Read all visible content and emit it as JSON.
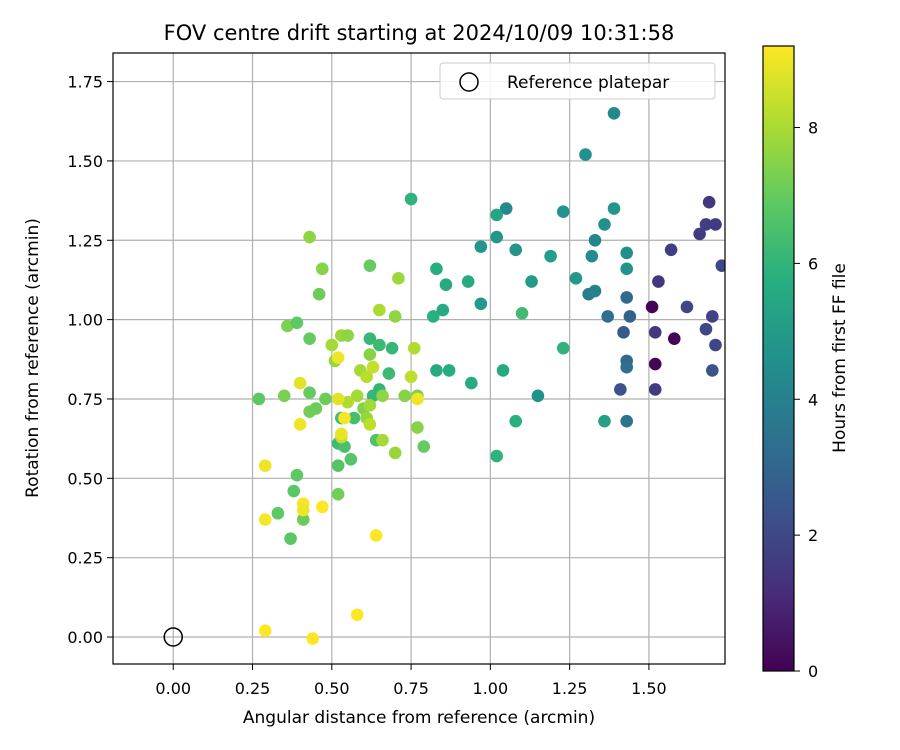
{
  "chart_data": {
    "type": "scatter",
    "title": "FOV centre drift starting at 2024/10/09 10:31:58",
    "xlabel": "Angular distance from reference (arcmin)",
    "ylabel": "Rotation from reference (arcmin)",
    "xlim": [
      -0.19,
      1.74
    ],
    "ylim": [
      -0.085,
      1.84
    ],
    "x_ticks": [
      "0.00",
      "0.25",
      "0.50",
      "0.75",
      "1.00",
      "1.25",
      "1.50"
    ],
    "x_tick_values": [
      0,
      0.25,
      0.5,
      0.75,
      1.0,
      1.25,
      1.5
    ],
    "y_ticks": [
      "0.00",
      "0.25",
      "0.50",
      "0.75",
      "1.00",
      "1.25",
      "1.50",
      "1.75"
    ],
    "y_tick_values": [
      0,
      0.25,
      0.5,
      0.75,
      1.0,
      1.25,
      1.5,
      1.75
    ],
    "grid": true,
    "colormap": "viridis",
    "colorbar": {
      "label": "Hours from first FF file",
      "range": [
        0,
        9.2
      ],
      "ticks": [
        "0",
        "2",
        "4",
        "6",
        "8"
      ],
      "tick_values": [
        0,
        2,
        4,
        6,
        8
      ]
    },
    "legend": {
      "placement": "top-right",
      "entries": [
        "Reference platepar"
      ]
    },
    "reference_point": {
      "x": 0.0,
      "y": 0.0
    },
    "points": [
      {
        "x": 1.51,
        "y": 1.04,
        "t": 0.1
      },
      {
        "x": 1.52,
        "y": 0.86,
        "t": 0.1
      },
      {
        "x": 1.58,
        "y": 0.94,
        "t": 0.1
      },
      {
        "x": 1.52,
        "y": 0.96,
        "t": 1.5
      },
      {
        "x": 1.52,
        "y": 0.78,
        "t": 1.6
      },
      {
        "x": 1.53,
        "y": 1.12,
        "t": 1.5
      },
      {
        "x": 1.57,
        "y": 1.22,
        "t": 1.7
      },
      {
        "x": 1.62,
        "y": 1.04,
        "t": 1.9
      },
      {
        "x": 1.66,
        "y": 1.27,
        "t": 1.6
      },
      {
        "x": 1.68,
        "y": 1.3,
        "t": 1.7
      },
      {
        "x": 1.69,
        "y": 1.37,
        "t": 1.5
      },
      {
        "x": 1.71,
        "y": 1.3,
        "t": 1.6
      },
      {
        "x": 1.68,
        "y": 0.97,
        "t": 2.0
      },
      {
        "x": 1.7,
        "y": 1.01,
        "t": 1.8
      },
      {
        "x": 1.71,
        "y": 0.92,
        "t": 1.9
      },
      {
        "x": 1.7,
        "y": 0.84,
        "t": 2.4
      },
      {
        "x": 1.73,
        "y": 1.17,
        "t": 2.0
      },
      {
        "x": 1.41,
        "y": 0.78,
        "t": 2.3
      },
      {
        "x": 1.42,
        "y": 0.96,
        "t": 2.6
      },
      {
        "x": 1.44,
        "y": 1.01,
        "t": 2.9
      },
      {
        "x": 1.43,
        "y": 1.07,
        "t": 3.2
      },
      {
        "x": 1.43,
        "y": 0.87,
        "t": 3.1
      },
      {
        "x": 1.43,
        "y": 0.85,
        "t": 3.3
      },
      {
        "x": 1.43,
        "y": 0.68,
        "t": 3.5
      },
      {
        "x": 1.37,
        "y": 1.01,
        "t": 3.3
      },
      {
        "x": 1.31,
        "y": 1.08,
        "t": 3.8
      },
      {
        "x": 1.33,
        "y": 1.09,
        "t": 4.0
      },
      {
        "x": 1.32,
        "y": 1.2,
        "t": 4.4
      },
      {
        "x": 1.33,
        "y": 1.25,
        "t": 4.2
      },
      {
        "x": 1.36,
        "y": 1.3,
        "t": 4.6
      },
      {
        "x": 1.39,
        "y": 1.35,
        "t": 4.8
      },
      {
        "x": 1.39,
        "y": 1.65,
        "t": 4.3
      },
      {
        "x": 1.3,
        "y": 1.52,
        "t": 4.6
      },
      {
        "x": 1.23,
        "y": 1.34,
        "t": 4.7
      },
      {
        "x": 1.27,
        "y": 1.13,
        "t": 4.9
      },
      {
        "x": 1.43,
        "y": 1.16,
        "t": 4.7
      },
      {
        "x": 1.43,
        "y": 1.21,
        "t": 4.5
      },
      {
        "x": 1.36,
        "y": 0.68,
        "t": 5.2
      },
      {
        "x": 1.15,
        "y": 0.76,
        "t": 4.6
      },
      {
        "x": 1.05,
        "y": 1.35,
        "t": 4.3
      },
      {
        "x": 1.02,
        "y": 1.26,
        "t": 4.8
      },
      {
        "x": 1.08,
        "y": 1.22,
        "t": 4.7
      },
      {
        "x": 1.19,
        "y": 1.2,
        "t": 5.1
      },
      {
        "x": 1.13,
        "y": 1.12,
        "t": 5.0
      },
      {
        "x": 0.97,
        "y": 1.05,
        "t": 4.9
      },
      {
        "x": 0.97,
        "y": 1.23,
        "t": 4.8
      },
      {
        "x": 1.02,
        "y": 1.33,
        "t": 5.4
      },
      {
        "x": 0.75,
        "y": 1.38,
        "t": 5.9
      },
      {
        "x": 0.93,
        "y": 1.12,
        "t": 5.6
      },
      {
        "x": 0.86,
        "y": 1.11,
        "t": 5.6
      },
      {
        "x": 0.83,
        "y": 1.16,
        "t": 5.7
      },
      {
        "x": 0.82,
        "y": 1.01,
        "t": 5.8
      },
      {
        "x": 0.85,
        "y": 1.03,
        "t": 5.6
      },
      {
        "x": 1.1,
        "y": 1.02,
        "t": 6.3
      },
      {
        "x": 1.23,
        "y": 0.91,
        "t": 5.9
      },
      {
        "x": 1.04,
        "y": 0.84,
        "t": 5.5
      },
      {
        "x": 0.94,
        "y": 0.8,
        "t": 5.6
      },
      {
        "x": 0.87,
        "y": 0.84,
        "t": 5.7
      },
      {
        "x": 0.83,
        "y": 0.84,
        "t": 5.6
      },
      {
        "x": 1.08,
        "y": 0.68,
        "t": 5.8
      },
      {
        "x": 1.02,
        "y": 0.57,
        "t": 5.9
      },
      {
        "x": 0.69,
        "y": 0.91,
        "t": 6.1
      },
      {
        "x": 0.62,
        "y": 0.94,
        "t": 6.1
      },
      {
        "x": 0.65,
        "y": 0.92,
        "t": 6.2
      },
      {
        "x": 0.68,
        "y": 0.83,
        "t": 6.2
      },
      {
        "x": 0.63,
        "y": 0.76,
        "t": 6.1
      },
      {
        "x": 0.65,
        "y": 0.78,
        "t": 6.0
      },
      {
        "x": 0.57,
        "y": 0.69,
        "t": 6.4
      },
      {
        "x": 0.53,
        "y": 0.69,
        "t": 6.3
      },
      {
        "x": 0.52,
        "y": 0.61,
        "t": 6.2
      },
      {
        "x": 0.54,
        "y": 0.6,
        "t": 6.5
      },
      {
        "x": 0.56,
        "y": 0.56,
        "t": 6.7
      },
      {
        "x": 0.64,
        "y": 0.62,
        "t": 6.6
      },
      {
        "x": 0.52,
        "y": 0.54,
        "t": 6.7
      },
      {
        "x": 0.52,
        "y": 0.45,
        "t": 7.2
      },
      {
        "x": 0.37,
        "y": 0.31,
        "t": 6.8
      },
      {
        "x": 0.39,
        "y": 0.51,
        "t": 6.9
      },
      {
        "x": 0.38,
        "y": 0.46,
        "t": 6.8
      },
      {
        "x": 0.33,
        "y": 0.39,
        "t": 6.9
      },
      {
        "x": 0.41,
        "y": 0.37,
        "t": 7.1
      },
      {
        "x": 0.43,
        "y": 0.71,
        "t": 7.2
      },
      {
        "x": 0.45,
        "y": 0.72,
        "t": 7.1
      },
      {
        "x": 0.43,
        "y": 0.77,
        "t": 7.0
      },
      {
        "x": 0.35,
        "y": 0.76,
        "t": 7.3
      },
      {
        "x": 0.27,
        "y": 0.75,
        "t": 6.9
      },
      {
        "x": 0.48,
        "y": 0.75,
        "t": 7.1
      },
      {
        "x": 0.36,
        "y": 0.98,
        "t": 7.3
      },
      {
        "x": 0.39,
        "y": 0.99,
        "t": 6.9
      },
      {
        "x": 0.43,
        "y": 0.94,
        "t": 7.0
      },
      {
        "x": 0.46,
        "y": 1.08,
        "t": 7.1
      },
      {
        "x": 0.47,
        "y": 1.16,
        "t": 7.5
      },
      {
        "x": 0.43,
        "y": 1.26,
        "t": 7.6
      },
      {
        "x": 0.62,
        "y": 1.17,
        "t": 7.0
      },
      {
        "x": 0.71,
        "y": 1.13,
        "t": 7.8
      },
      {
        "x": 0.65,
        "y": 1.03,
        "t": 8.0
      },
      {
        "x": 0.7,
        "y": 1.01,
        "t": 7.6
      },
      {
        "x": 0.5,
        "y": 0.92,
        "t": 7.9
      },
      {
        "x": 0.53,
        "y": 0.95,
        "t": 7.8
      },
      {
        "x": 0.55,
        "y": 0.95,
        "t": 7.6
      },
      {
        "x": 0.51,
        "y": 0.87,
        "t": 7.7
      },
      {
        "x": 0.62,
        "y": 0.89,
        "t": 7.5
      },
      {
        "x": 0.59,
        "y": 0.84,
        "t": 7.9
      },
      {
        "x": 0.61,
        "y": 0.82,
        "t": 8.2
      },
      {
        "x": 0.63,
        "y": 0.85,
        "t": 8.4
      },
      {
        "x": 0.66,
        "y": 0.76,
        "t": 7.6
      },
      {
        "x": 0.6,
        "y": 0.72,
        "t": 7.4
      },
      {
        "x": 0.61,
        "y": 0.69,
        "t": 7.7
      },
      {
        "x": 0.62,
        "y": 0.73,
        "t": 7.9
      },
      {
        "x": 0.58,
        "y": 0.76,
        "t": 7.9
      },
      {
        "x": 0.73,
        "y": 0.76,
        "t": 7.5
      },
      {
        "x": 0.77,
        "y": 0.76,
        "t": 7.3
      },
      {
        "x": 0.75,
        "y": 0.82,
        "t": 8.3
      },
      {
        "x": 0.76,
        "y": 0.91,
        "t": 8.1
      },
      {
        "x": 0.77,
        "y": 0.66,
        "t": 7.5
      },
      {
        "x": 0.79,
        "y": 0.6,
        "t": 7.0
      },
      {
        "x": 0.7,
        "y": 0.58,
        "t": 7.7
      },
      {
        "x": 0.66,
        "y": 0.62,
        "t": 7.9
      },
      {
        "x": 0.55,
        "y": 0.74,
        "t": 8.1
      },
      {
        "x": 0.53,
        "y": 0.63,
        "t": 8.4
      },
      {
        "x": 0.62,
        "y": 0.67,
        "t": 8.3
      },
      {
        "x": 0.52,
        "y": 0.88,
        "t": 9.0
      },
      {
        "x": 0.52,
        "y": 0.75,
        "t": 8.8
      },
      {
        "x": 0.4,
        "y": 0.8,
        "t": 8.8
      },
      {
        "x": 0.54,
        "y": 0.69,
        "t": 9.1
      },
      {
        "x": 0.53,
        "y": 0.64,
        "t": 8.9
      },
      {
        "x": 0.4,
        "y": 0.67,
        "t": 9.0
      },
      {
        "x": 0.77,
        "y": 0.75,
        "t": 9.0
      },
      {
        "x": 0.41,
        "y": 0.42,
        "t": 9.1
      },
      {
        "x": 0.41,
        "y": 0.4,
        "t": 9.0
      },
      {
        "x": 0.47,
        "y": 0.41,
        "t": 9.2
      },
      {
        "x": 0.29,
        "y": 0.37,
        "t": 9.1
      },
      {
        "x": 0.29,
        "y": 0.54,
        "t": 9.0
      },
      {
        "x": 0.64,
        "y": 0.32,
        "t": 9.2
      },
      {
        "x": 0.58,
        "y": 0.07,
        "t": 9.2
      },
      {
        "x": 0.29,
        "y": 0.02,
        "t": 9.2
      },
      {
        "x": 0.44,
        "y": -0.005,
        "t": 9.2
      }
    ]
  }
}
